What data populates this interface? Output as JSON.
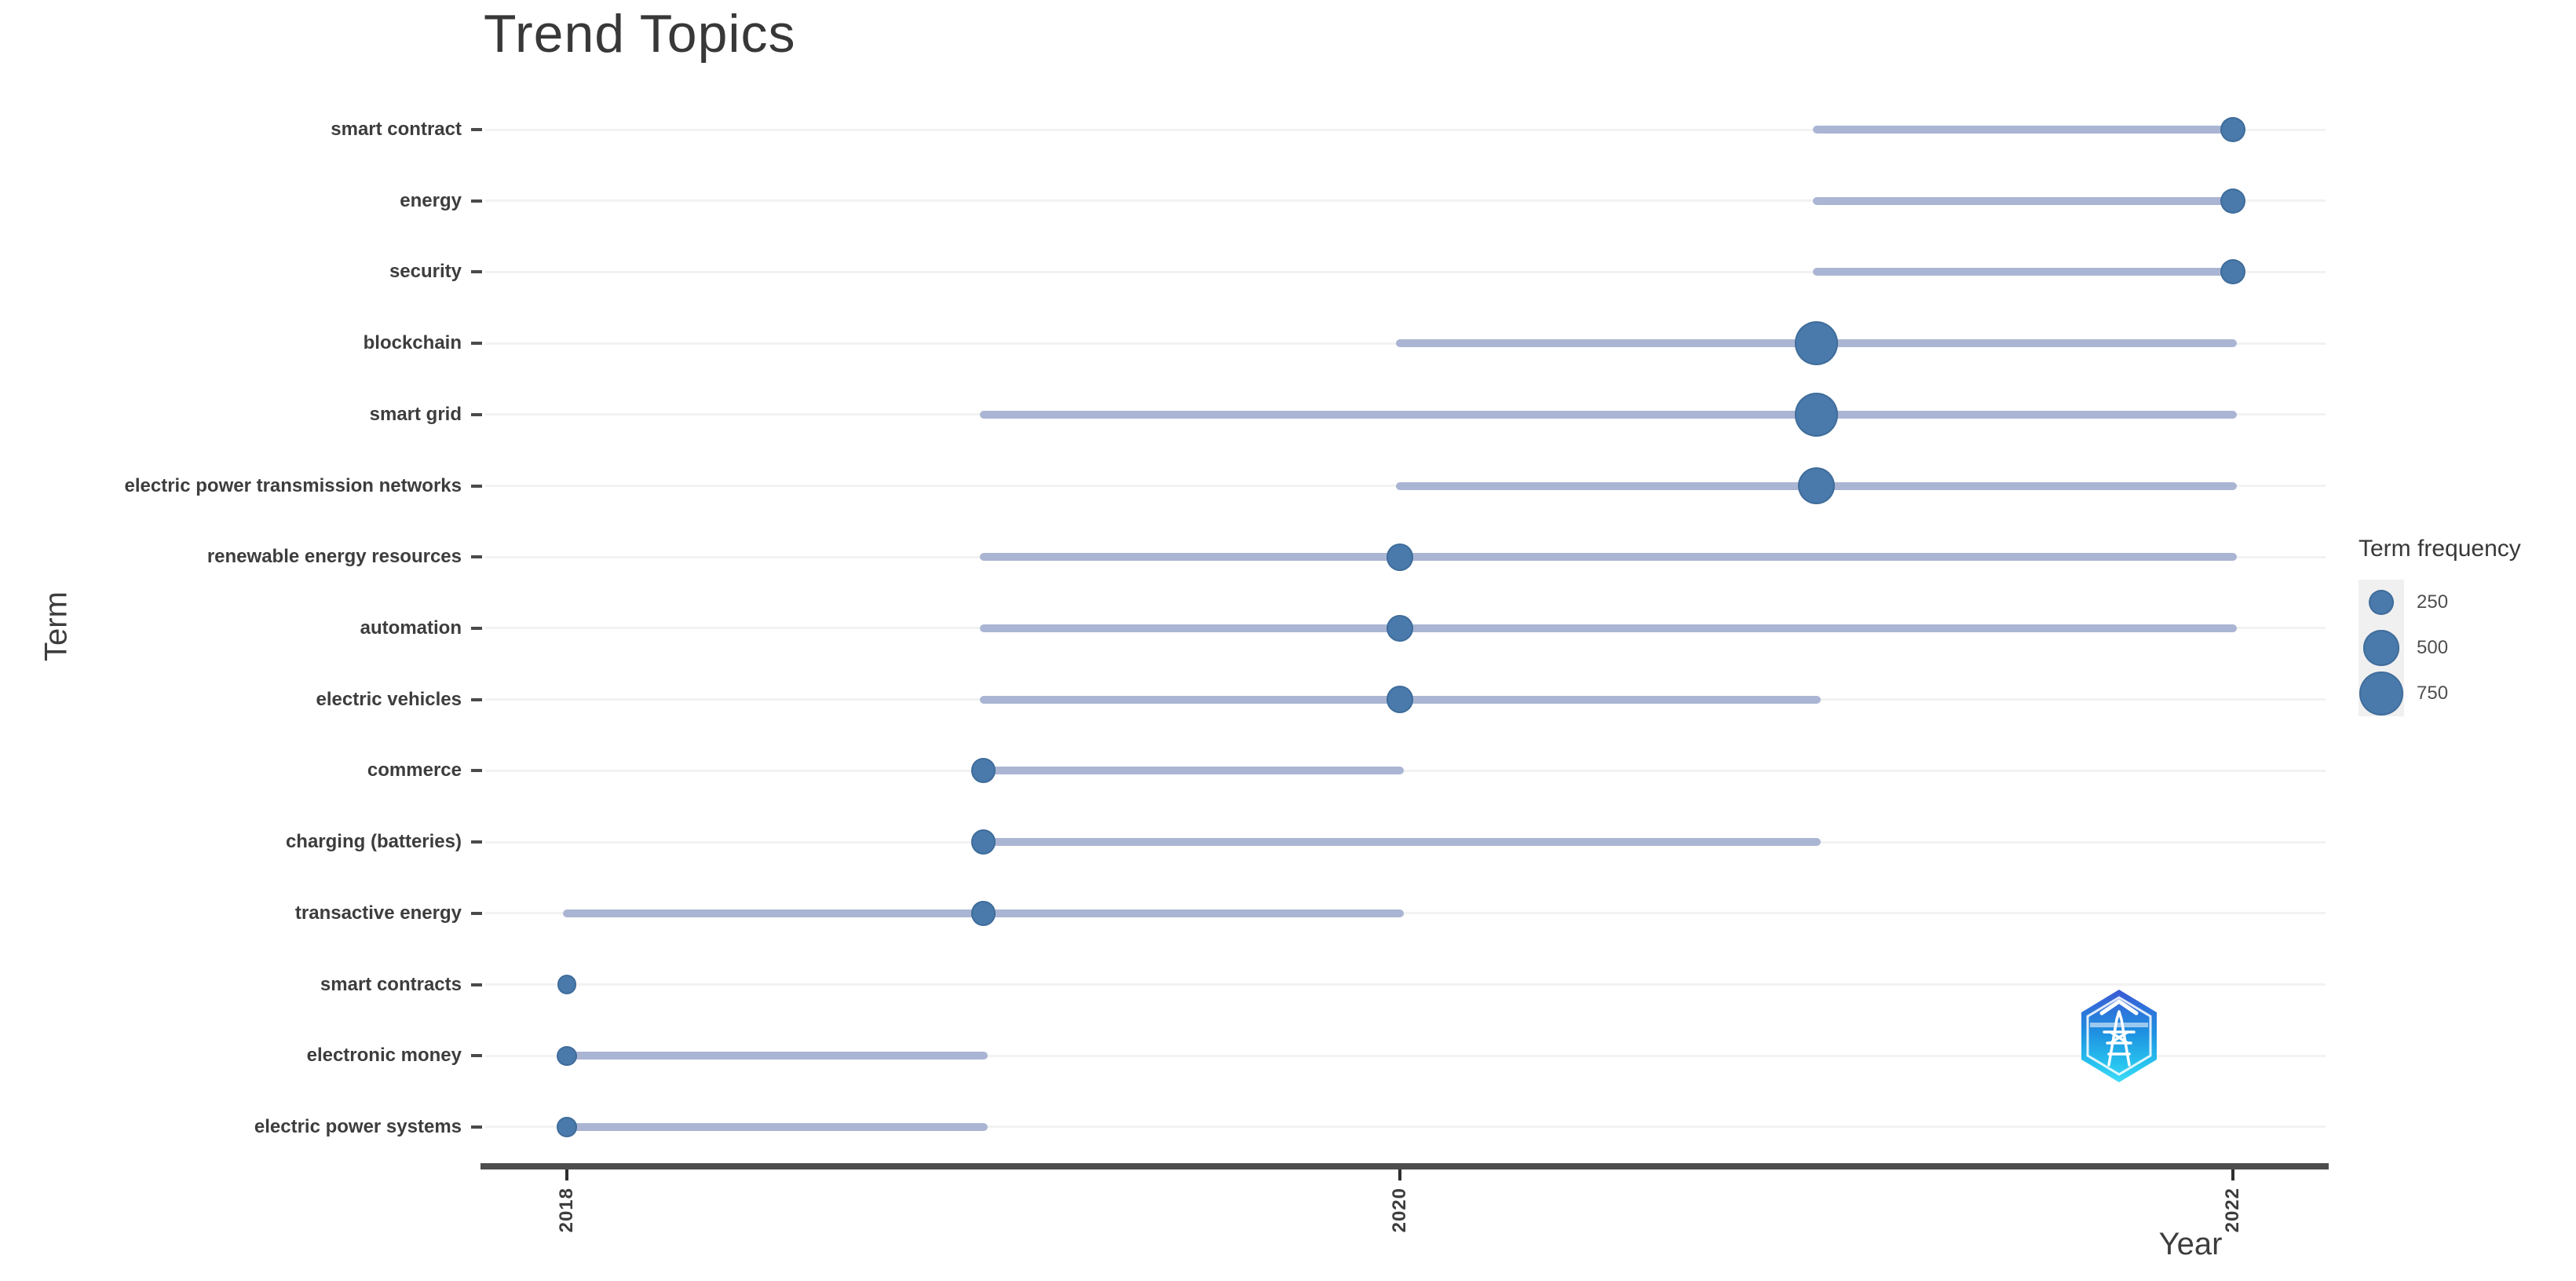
{
  "chart_data": {
    "type": "scatter",
    "subtype": "dot-plot-with-ranges",
    "title": "Trend Topics",
    "xlabel": "Year",
    "ylabel": "Term",
    "x_domain": [
      2018,
      2022
    ],
    "x_tick_labels": [
      "2018",
      "2020",
      "2022"
    ],
    "grid": "horizontal-major-only",
    "legend": {
      "title": "Term frequency",
      "position": "right",
      "entries": [
        250,
        500,
        750
      ]
    },
    "rows": [
      {
        "term": "smart contract",
        "range": [
          2021,
          2022
        ],
        "peak_year": 2022,
        "frequency": 250
      },
      {
        "term": "energy",
        "range": [
          2021,
          2022
        ],
        "peak_year": 2022,
        "frequency": 250
      },
      {
        "term": "security",
        "range": [
          2021,
          2022
        ],
        "peak_year": 2022,
        "frequency": 250
      },
      {
        "term": "blockchain",
        "range": [
          2020,
          2022
        ],
        "peak_year": 2021,
        "frequency": 750
      },
      {
        "term": "smart grid",
        "range": [
          2019,
          2022
        ],
        "peak_year": 2021,
        "frequency": 750
      },
      {
        "term": "electric power transmission networks",
        "range": [
          2020,
          2022
        ],
        "peak_year": 2021,
        "frequency": 550
      },
      {
        "term": "renewable energy resources",
        "range": [
          2019,
          2022
        ],
        "peak_year": 2020,
        "frequency": 300
      },
      {
        "term": "automation",
        "range": [
          2019,
          2022
        ],
        "peak_year": 2020,
        "frequency": 280
      },
      {
        "term": "electric vehicles",
        "range": [
          2019,
          2021
        ],
        "peak_year": 2020,
        "frequency": 300
      },
      {
        "term": "commerce",
        "range": [
          2019,
          2020
        ],
        "peak_year": 2019,
        "frequency": 250
      },
      {
        "term": "charging (batteries)",
        "range": [
          2019,
          2021
        ],
        "peak_year": 2019,
        "frequency": 250
      },
      {
        "term": "transactive energy",
        "range": [
          2018,
          2020
        ],
        "peak_year": 2019,
        "frequency": 250
      },
      {
        "term": "smart contracts",
        "range": [
          2018,
          2018
        ],
        "peak_year": 2018,
        "frequency": 150
      },
      {
        "term": "electronic money",
        "range": [
          2018,
          2019
        ],
        "peak_year": 2018,
        "frequency": 160
      },
      {
        "term": "electric power systems",
        "range": [
          2018,
          2019
        ],
        "peak_year": 2018,
        "frequency": 160
      }
    ]
  },
  "colors": {
    "dot": "#4a7aab",
    "range_line": "#aab5d3",
    "gridline": "#f2f2f2",
    "axis_line": "#4d4d4d",
    "text": "#3d3d3d",
    "watermark_blue_top": "#3b5ad4",
    "watermark_blue_mid": "#1f8fe0",
    "watermark_cyan_bottom": "#3fdcf7"
  },
  "watermark": {
    "name": "hexagon-power-tower-logo"
  }
}
